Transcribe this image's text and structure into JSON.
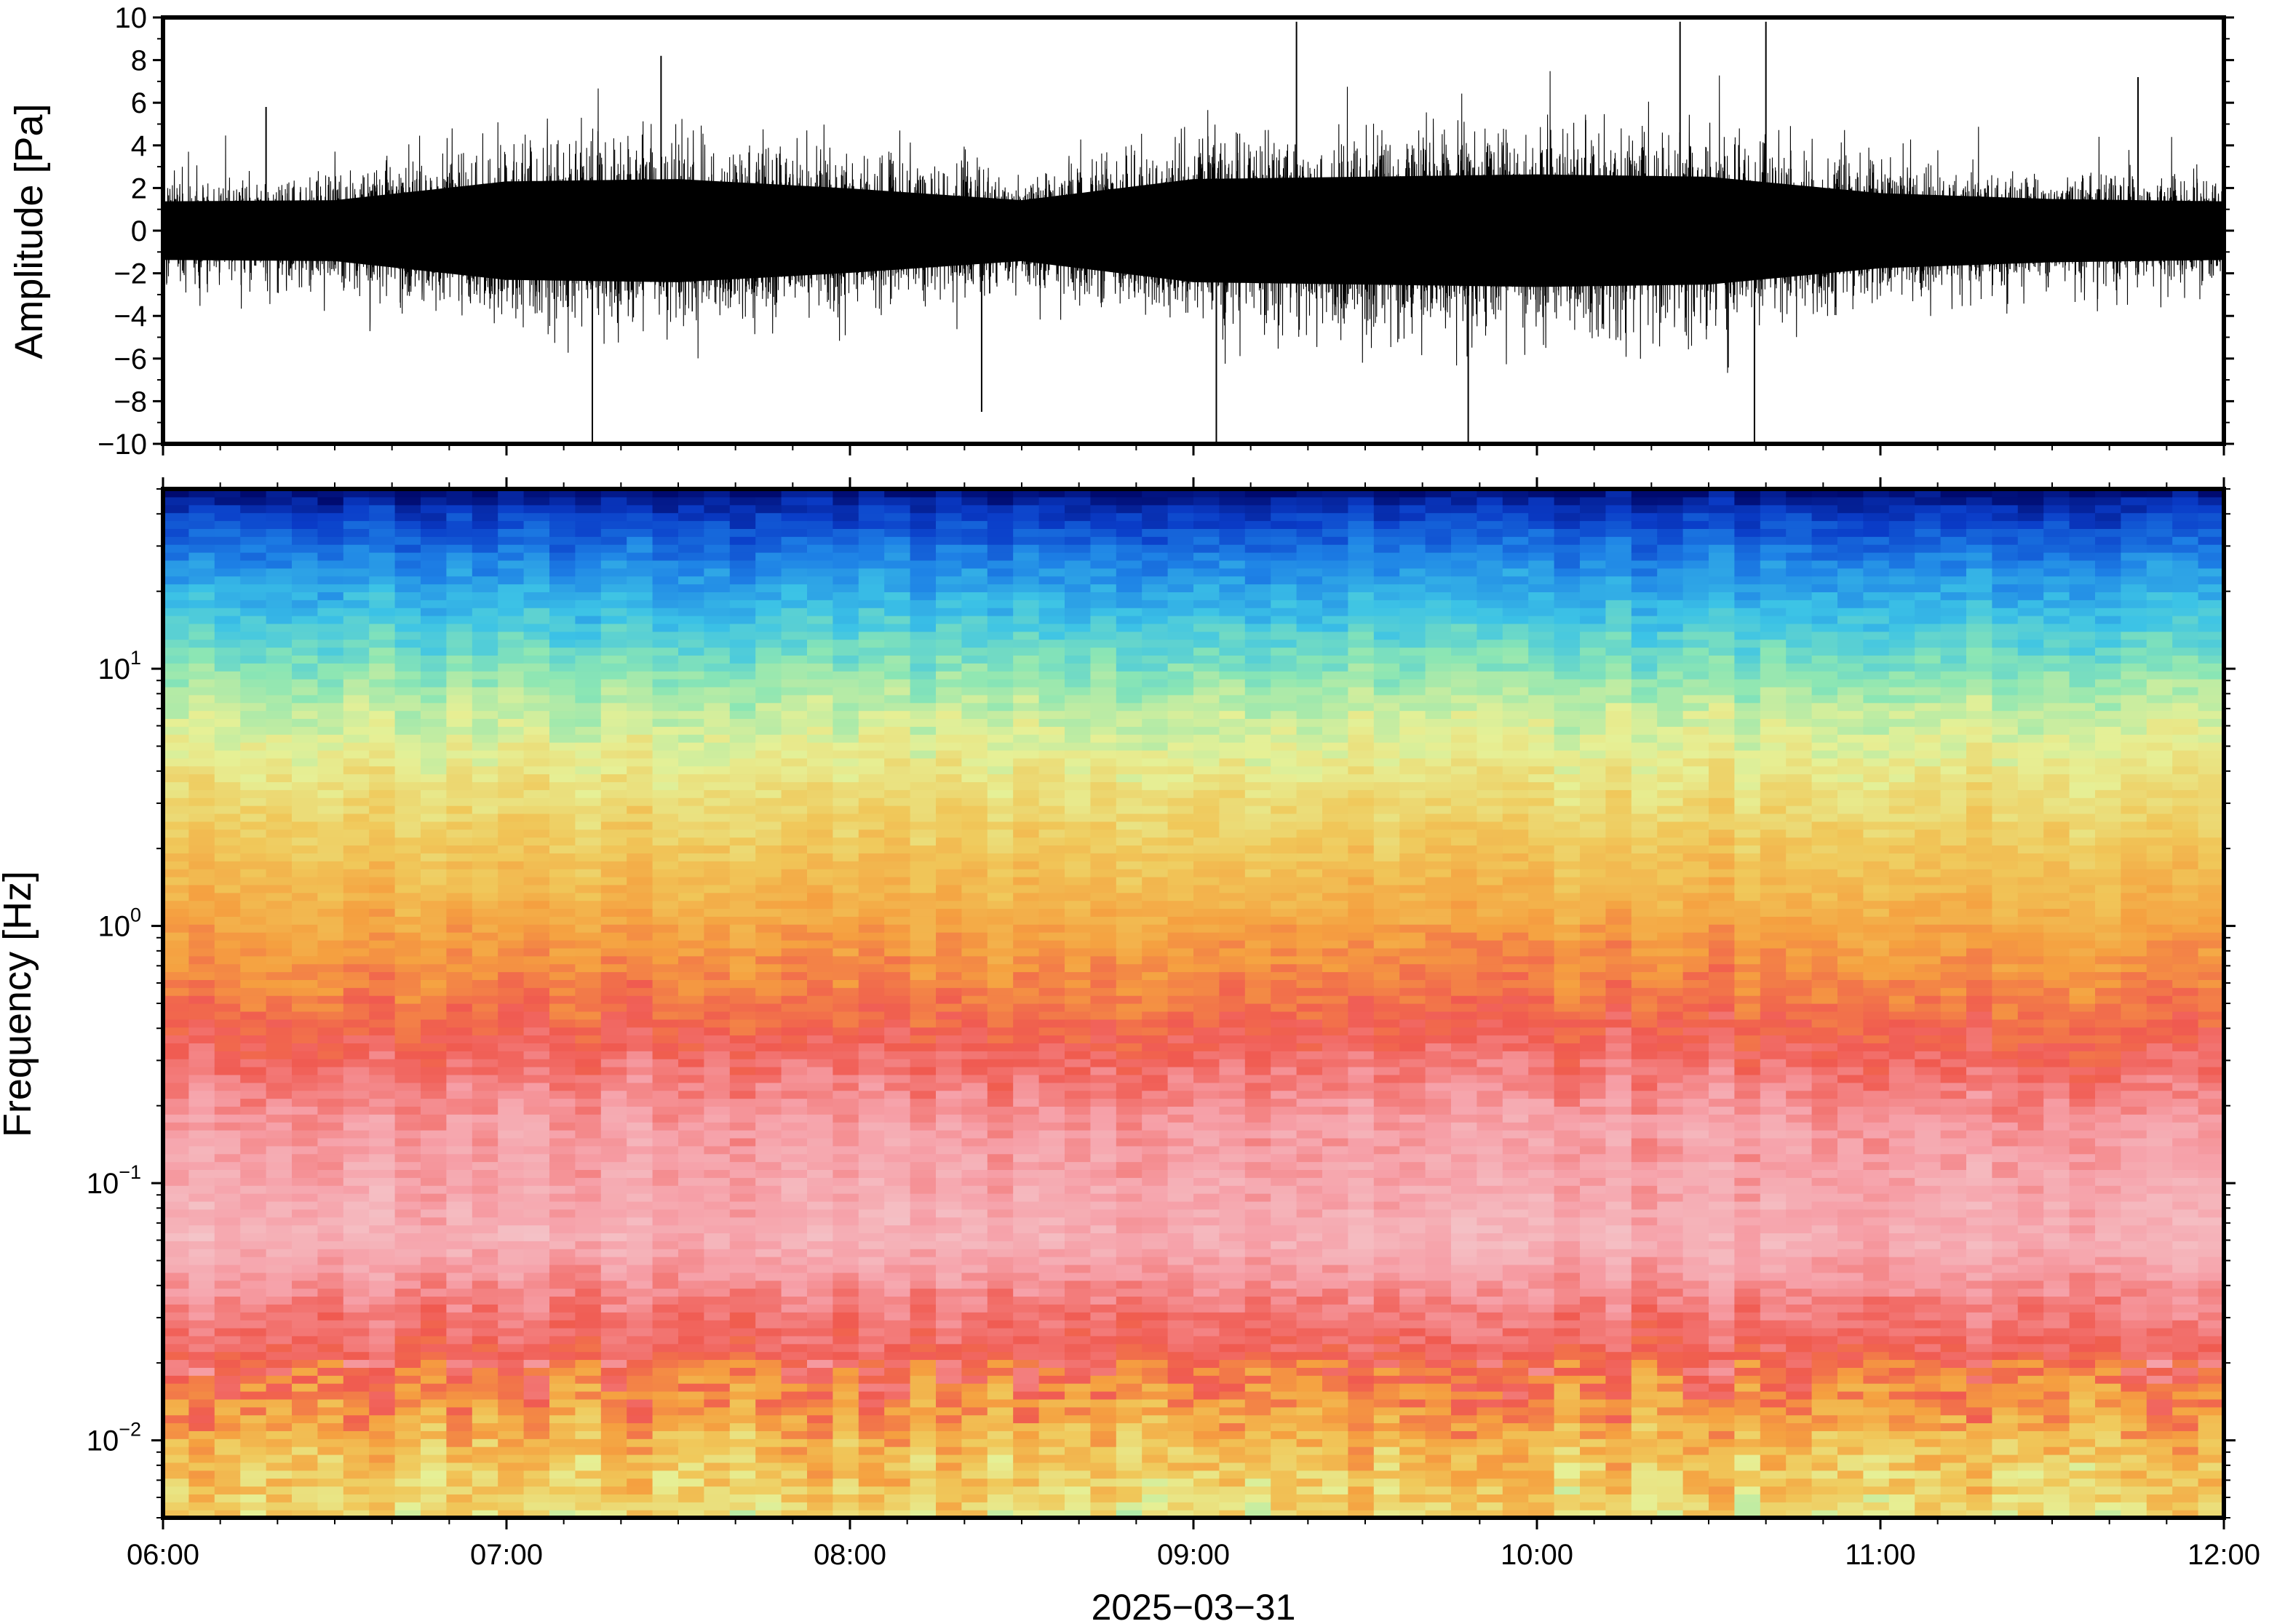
{
  "chart_data": [
    {
      "type": "line",
      "panel": "waveform",
      "ylabel": "Amplitude [Pa]",
      "ylim": [
        -10,
        10
      ],
      "yticks": [
        -10,
        -8,
        -6,
        -4,
        -2,
        0,
        2,
        4,
        6,
        8,
        10
      ],
      "ytick_labels": [
        "−10",
        "−8",
        "−6",
        "−4",
        "−2",
        "0",
        "2",
        "4",
        "6",
        "8",
        "10"
      ],
      "xlim": [
        "06:00",
        "12:00"
      ],
      "series": [
        {
          "color": "#000000",
          "envelope_time": [
            "06:00",
            "06:30",
            "07:00",
            "07:30",
            "08:00",
            "08:30",
            "09:00",
            "09:30",
            "10:00",
            "10:30",
            "11:00",
            "11:30",
            "12:00"
          ],
          "envelope_amplitude": [
            2.5,
            2.6,
            4.2,
            4.4,
            3.6,
            2.6,
            4.4,
            4.6,
            4.8,
            4.6,
            3.2,
            2.7,
            2.5
          ],
          "peak_values": [
            {
              "t": "06:18",
              "y": 5.8
            },
            {
              "t": "07:15",
              "y": -10
            },
            {
              "t": "07:27",
              "y": 8.2
            },
            {
              "t": "08:23",
              "y": -8.5
            },
            {
              "t": "09:04",
              "y": -10
            },
            {
              "t": "09:18",
              "y": 9.8
            },
            {
              "t": "09:48",
              "y": -10
            },
            {
              "t": "10:25",
              "y": 9.8
            },
            {
              "t": "10:38",
              "y": -10
            },
            {
              "t": "10:40",
              "y": 9.8
            },
            {
              "t": "11:45",
              "y": 7.2
            }
          ]
        }
      ]
    },
    {
      "type": "heatmap",
      "panel": "spectrogram",
      "ylabel": "Frequency [Hz]",
      "xlabel": "2025−03−31",
      "y_scale": "log",
      "ylim_hz": [
        0.005,
        50
      ],
      "yticks": [
        {
          "mantissa": "10",
          "exponent": "−2"
        },
        {
          "mantissa": "10",
          "exponent": "−1"
        },
        {
          "mantissa": "10",
          "exponent": "0"
        },
        {
          "mantissa": "10",
          "exponent": "1"
        }
      ],
      "xticks": [
        "06:00",
        "07:00",
        "08:00",
        "09:00",
        "10:00",
        "11:00",
        "12:00"
      ],
      "colormap": [
        "#000a6e",
        "#0a3cc8",
        "#1e82e6",
        "#3cc3e6",
        "#8be6b4",
        "#e6f096",
        "#f0c85a",
        "#f5a040",
        "#f05a50",
        "#f6a0a8",
        "#f4c8cc"
      ],
      "power_profile_by_frequency": [
        {
          "hz": 0.005,
          "level": "light green / yellow"
        },
        {
          "hz": 0.015,
          "level": "orange"
        },
        {
          "hz": 0.025,
          "level": "red"
        },
        {
          "hz": 0.1,
          "level": "pink"
        },
        {
          "hz": 0.4,
          "level": "red"
        },
        {
          "hz": 1,
          "level": "orange"
        },
        {
          "hz": 3,
          "level": "yellow"
        },
        {
          "hz": 10,
          "level": "green / cyan"
        },
        {
          "hz": 30,
          "level": "blue"
        },
        {
          "hz": 50,
          "level": "dark blue"
        }
      ]
    }
  ]
}
